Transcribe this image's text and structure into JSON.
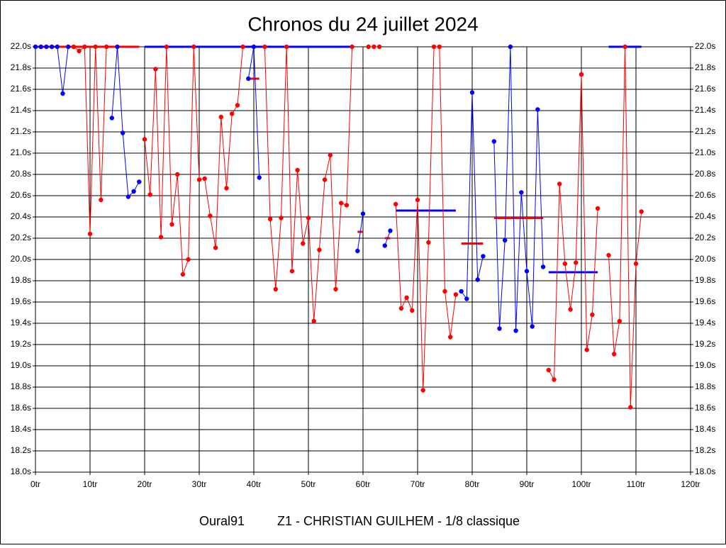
{
  "chart_data": {
    "type": "line",
    "title": "Chronos du 24 juillet 2024",
    "footer": [
      "Oural91",
      "Z1 - CHRISTIAN GUILHEM - 1/8 classique"
    ],
    "xlim": [
      0,
      120
    ],
    "ylim": [
      18,
      22
    ],
    "grid": true,
    "xticks": [
      {
        "value": 0,
        "label": "0tr"
      },
      {
        "value": 10,
        "label": "10tr"
      },
      {
        "value": 20,
        "label": "20tr"
      },
      {
        "value": 30,
        "label": "30tr"
      },
      {
        "value": 40,
        "label": "40tr"
      },
      {
        "value": 50,
        "label": "50tr"
      },
      {
        "value": 60,
        "label": "60tr"
      },
      {
        "value": 70,
        "label": "70tr"
      },
      {
        "value": 80,
        "label": "80tr"
      },
      {
        "value": 90,
        "label": "90tr"
      },
      {
        "value": 100,
        "label": "100tr"
      },
      {
        "value": 110,
        "label": "110tr"
      },
      {
        "value": 120,
        "label": "120tr"
      }
    ],
    "yticks": [
      {
        "value": 18,
        "label": "18.0s"
      },
      {
        "value": 18.2,
        "label": "18.2s"
      },
      {
        "value": 18.4,
        "label": "18.4s"
      },
      {
        "value": 18.6,
        "label": "18.6s"
      },
      {
        "value": 18.8,
        "label": "18.8s"
      },
      {
        "value": 19,
        "label": "19.0s"
      },
      {
        "value": 19.2,
        "label": "19.2s"
      },
      {
        "value": 19.4,
        "label": "19.4s"
      },
      {
        "value": 19.6,
        "label": "19.6s"
      },
      {
        "value": 19.8,
        "label": "19.8s"
      },
      {
        "value": 20,
        "label": "20.0s"
      },
      {
        "value": 20.2,
        "label": "20.2s"
      },
      {
        "value": 20.4,
        "label": "20.4s"
      },
      {
        "value": 20.6,
        "label": "20.6s"
      },
      {
        "value": 20.8,
        "label": "20.8s"
      },
      {
        "value": 21,
        "label": "21.0s"
      },
      {
        "value": 21.2,
        "label": "21.2s"
      },
      {
        "value": 21.4,
        "label": "21.4s"
      },
      {
        "value": 21.6,
        "label": "21.6s"
      },
      {
        "value": 21.8,
        "label": "21.8s"
      },
      {
        "value": 22,
        "label": "22.0s"
      }
    ],
    "series": [
      {
        "color": "#0000ff",
        "x": [
          0,
          1,
          2,
          3,
          4,
          5,
          6
        ],
        "values": [
          22,
          22,
          22,
          22,
          22,
          21.56,
          22
        ]
      },
      {
        "color": "#ff0000",
        "x": [
          7,
          8,
          9,
          10,
          11,
          12,
          13
        ],
        "values": [
          22,
          21.96,
          22,
          20.24,
          22,
          20.56,
          22
        ]
      },
      {
        "color": "#0000ff",
        "x": [
          14,
          15,
          16,
          17,
          18,
          19
        ],
        "values": [
          21.33,
          22,
          21.19,
          20.59,
          20.64,
          20.73
        ]
      },
      {
        "color": "#ff0000",
        "x": [
          20,
          21,
          22,
          23,
          24,
          25,
          26,
          27,
          28,
          29,
          30,
          31,
          32,
          33,
          34,
          35,
          36,
          37,
          38
        ],
        "values": [
          21.13,
          20.61,
          21.79,
          20.21,
          22,
          20.33,
          20.8,
          19.86,
          20,
          22,
          20.75,
          20.76,
          20.41,
          20.11,
          21.34,
          20.67,
          21.37,
          21.45,
          22
        ]
      },
      {
        "color": "#0000ff",
        "x": [
          39,
          40,
          41
        ],
        "values": [
          21.7,
          22,
          20.77
        ]
      },
      {
        "color": "#ff0000",
        "x": [
          42,
          43,
          44,
          45,
          46,
          47,
          48,
          49,
          50,
          51,
          52,
          53,
          54,
          55,
          56,
          57,
          58
        ],
        "values": [
          22,
          20.38,
          19.72,
          20.39,
          22,
          19.89,
          20.84,
          20.15,
          20.39,
          19.42,
          20.09,
          20.75,
          20.98,
          19.72,
          20.53,
          20.51,
          22
        ]
      },
      {
        "color": "#0000ff",
        "x": [
          59,
          60
        ],
        "values": [
          20.08,
          20.43
        ]
      },
      {
        "color": "#ff0000",
        "x": [
          61,
          62,
          63
        ],
        "values": [
          22,
          22,
          22
        ]
      },
      {
        "color": "#0000ff",
        "x": [
          64,
          65
        ],
        "values": [
          20.13,
          20.27
        ]
      },
      {
        "color": "#ff0000",
        "x": [
          66,
          67,
          68,
          69,
          70,
          71,
          72,
          73,
          74,
          75,
          76,
          77
        ],
        "values": [
          20.52,
          19.54,
          19.64,
          19.52,
          20.56,
          18.77,
          20.16,
          22,
          22,
          19.7,
          19.27,
          19.67
        ]
      },
      {
        "color": "#0000ff",
        "x": [
          78,
          79,
          80,
          81,
          82
        ],
        "values": [
          19.7,
          19.63,
          21.57,
          19.81,
          20.03
        ]
      },
      {
        "color": "#0000ff",
        "x": [
          84,
          85,
          86,
          87,
          88,
          89,
          90,
          91,
          92,
          93
        ],
        "values": [
          21.11,
          19.35,
          20.18,
          22,
          19.33,
          20.63,
          19.89,
          19.37,
          21.41,
          19.93
        ]
      },
      {
        "color": "#ff0000",
        "x": [
          94,
          95,
          96,
          97,
          98,
          99,
          100,
          101,
          102,
          103
        ],
        "values": [
          18.96,
          18.87,
          20.71,
          19.96,
          19.53,
          19.97,
          21.74,
          19.15,
          19.48,
          20.48
        ]
      },
      {
        "color": "#ff0000",
        "x": [
          105,
          106,
          107,
          108,
          109,
          110,
          111
        ],
        "values": [
          20.04,
          19.11,
          19.42,
          22,
          18.61,
          19.96,
          20.45
        ]
      }
    ],
    "averages": [
      {
        "color": "#ff0000",
        "x": [
          0,
          19
        ],
        "value": 22
      },
      {
        "color": "#0000ff",
        "x": [
          20,
          58
        ],
        "value": 22
      },
      {
        "color": "#ff0000",
        "x": [
          39,
          41
        ],
        "value": 21.7
      },
      {
        "color": "#ff0000",
        "x": [
          59,
          60
        ],
        "value": 20.26
      },
      {
        "color": "#ff0000",
        "x": [
          64,
          65
        ],
        "value": 20.2
      },
      {
        "color": "#0000ff",
        "x": [
          66,
          77
        ],
        "value": 20.46
      },
      {
        "color": "#ff0000",
        "x": [
          78,
          82
        ],
        "value": 20.15
      },
      {
        "color": "#ff0000",
        "x": [
          84,
          93
        ],
        "value": 20.39
      },
      {
        "color": "#0000ff",
        "x": [
          94,
          103
        ],
        "value": 19.88
      },
      {
        "color": "#0000ff",
        "x": [
          105,
          111
        ],
        "value": 22
      }
    ]
  }
}
